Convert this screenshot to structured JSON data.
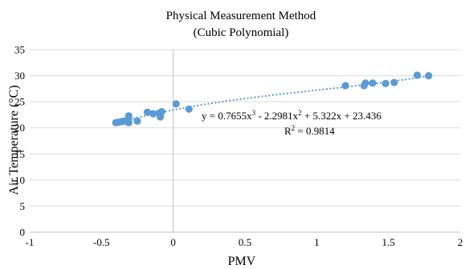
{
  "chart_data": {
    "type": "scatter",
    "title": "Physical Measurement Method",
    "subtitle": "(Cubic Polynomial)",
    "xlabel": "PMV",
    "ylabel": "Air Temperature (°C)",
    "xlim": [
      -1,
      2
    ],
    "ylim": [
      0,
      35
    ],
    "x_ticks": [
      "-1",
      "-0.5",
      "0",
      "0.5",
      "1",
      "1.5",
      "2"
    ],
    "y_ticks": [
      "0",
      "5",
      "10",
      "15",
      "20",
      "25",
      "30",
      "35"
    ],
    "grid": "horizontal",
    "legend": "none",
    "series": [
      {
        "points": [
          {
            "x": -0.4,
            "y": 21.0
          },
          {
            "x": -0.38,
            "y": 21.1
          },
          {
            "x": -0.36,
            "y": 21.2
          },
          {
            "x": -0.34,
            "y": 21.3
          },
          {
            "x": -0.31,
            "y": 21.0
          },
          {
            "x": -0.31,
            "y": 21.6
          },
          {
            "x": -0.31,
            "y": 22.3
          },
          {
            "x": -0.25,
            "y": 21.3
          },
          {
            "x": -0.18,
            "y": 23.0
          },
          {
            "x": -0.14,
            "y": 22.7
          },
          {
            "x": -0.1,
            "y": 22.8
          },
          {
            "x": -0.09,
            "y": 22.1
          },
          {
            "x": -0.08,
            "y": 23.1
          },
          {
            "x": 0.02,
            "y": 24.6
          },
          {
            "x": 0.11,
            "y": 23.6
          },
          {
            "x": 1.2,
            "y": 28.1
          },
          {
            "x": 1.33,
            "y": 28.1
          },
          {
            "x": 1.34,
            "y": 28.6
          },
          {
            "x": 1.39,
            "y": 28.6
          },
          {
            "x": 1.48,
            "y": 28.5
          },
          {
            "x": 1.54,
            "y": 28.7
          },
          {
            "x": 1.7,
            "y": 30.1
          },
          {
            "x": 1.78,
            "y": 30.0
          }
        ]
      }
    ],
    "trendline": {
      "type": "polynomial",
      "order": 3,
      "coefficients": [
        0.7655,
        -2.2981,
        5.322,
        23.436
      ],
      "x_range": [
        -0.4,
        1.78
      ],
      "equation": {
        "prefix": "y = 0.7655x",
        "sup1": "3",
        "mid1": " - 2.2981x",
        "sup2": "2",
        "rest": " + 5.322x + 23.436"
      },
      "r2": {
        "prefix": "R",
        "sup": "2",
        "rest": " = 0.9814"
      }
    },
    "colors": {
      "marker": "#5b9bd5",
      "grid": "#d9d9d9"
    }
  }
}
